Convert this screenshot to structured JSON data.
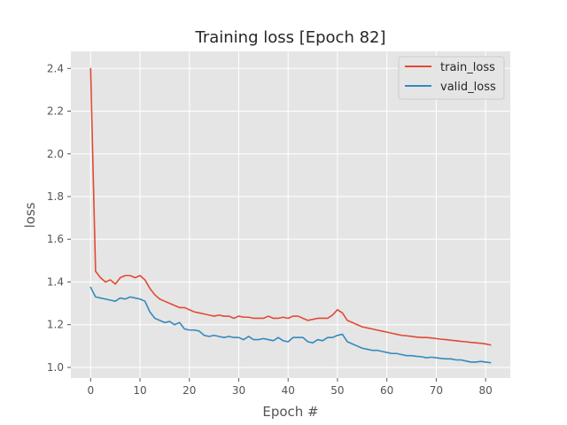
{
  "chart_data": {
    "type": "line",
    "title": "Training loss [Epoch 82]",
    "xlabel": "Epoch #",
    "ylabel": "loss",
    "xlim": [
      -4,
      85
    ],
    "ylim": [
      0.95,
      2.48
    ],
    "xticks": [
      "0",
      "10",
      "20",
      "30",
      "40",
      "50",
      "60",
      "70",
      "80"
    ],
    "yticks": [
      "1.0",
      "1.2",
      "1.4",
      "1.6",
      "1.8",
      "2.0",
      "2.2",
      "2.4"
    ],
    "grid": true,
    "legend_position": "top-right",
    "colors": {
      "background": "#e5e5e5",
      "grid": "#ffffff",
      "train_loss": "#e24a33",
      "valid_loss": "#348abd"
    },
    "x": [
      0,
      1,
      2,
      3,
      4,
      5,
      6,
      7,
      8,
      9,
      10,
      11,
      12,
      13,
      14,
      15,
      16,
      17,
      18,
      19,
      20,
      21,
      22,
      23,
      24,
      25,
      26,
      27,
      28,
      29,
      30,
      31,
      32,
      33,
      34,
      35,
      36,
      37,
      38,
      39,
      40,
      41,
      42,
      43,
      44,
      45,
      46,
      47,
      48,
      49,
      50,
      51,
      52,
      53,
      54,
      55,
      56,
      57,
      58,
      59,
      60,
      61,
      62,
      63,
      64,
      65,
      66,
      67,
      68,
      69,
      70,
      71,
      72,
      73,
      74,
      75,
      76,
      77,
      78,
      79,
      80,
      81
    ],
    "series": [
      {
        "name": "train_loss",
        "values": [
          2.4,
          1.45,
          1.42,
          1.4,
          1.41,
          1.39,
          1.42,
          1.43,
          1.43,
          1.42,
          1.43,
          1.41,
          1.37,
          1.34,
          1.32,
          1.31,
          1.3,
          1.29,
          1.28,
          1.28,
          1.27,
          1.26,
          1.255,
          1.25,
          1.245,
          1.24,
          1.245,
          1.24,
          1.24,
          1.23,
          1.24,
          1.235,
          1.235,
          1.23,
          1.23,
          1.23,
          1.24,
          1.23,
          1.23,
          1.235,
          1.23,
          1.24,
          1.24,
          1.23,
          1.22,
          1.225,
          1.23,
          1.23,
          1.23,
          1.245,
          1.27,
          1.255,
          1.22,
          1.21,
          1.2,
          1.19,
          1.185,
          1.18,
          1.175,
          1.17,
          1.165,
          1.16,
          1.155,
          1.15,
          1.148,
          1.145,
          1.142,
          1.14,
          1.14,
          1.138,
          1.135,
          1.132,
          1.13,
          1.127,
          1.125,
          1.122,
          1.12,
          1.117,
          1.115,
          1.113,
          1.11,
          1.105
        ]
      },
      {
        "name": "valid_loss",
        "values": [
          1.375,
          1.33,
          1.325,
          1.32,
          1.315,
          1.31,
          1.325,
          1.32,
          1.33,
          1.325,
          1.32,
          1.31,
          1.26,
          1.23,
          1.22,
          1.21,
          1.215,
          1.2,
          1.21,
          1.18,
          1.175,
          1.175,
          1.17,
          1.15,
          1.145,
          1.15,
          1.145,
          1.14,
          1.145,
          1.14,
          1.14,
          1.13,
          1.145,
          1.13,
          1.13,
          1.135,
          1.13,
          1.125,
          1.14,
          1.125,
          1.12,
          1.14,
          1.14,
          1.14,
          1.12,
          1.115,
          1.13,
          1.125,
          1.14,
          1.14,
          1.15,
          1.155,
          1.12,
          1.11,
          1.1,
          1.09,
          1.085,
          1.08,
          1.08,
          1.075,
          1.07,
          1.065,
          1.065,
          1.06,
          1.055,
          1.055,
          1.052,
          1.05,
          1.045,
          1.048,
          1.045,
          1.042,
          1.04,
          1.04,
          1.035,
          1.035,
          1.03,
          1.025,
          1.025,
          1.028,
          1.025,
          1.022
        ]
      }
    ]
  }
}
